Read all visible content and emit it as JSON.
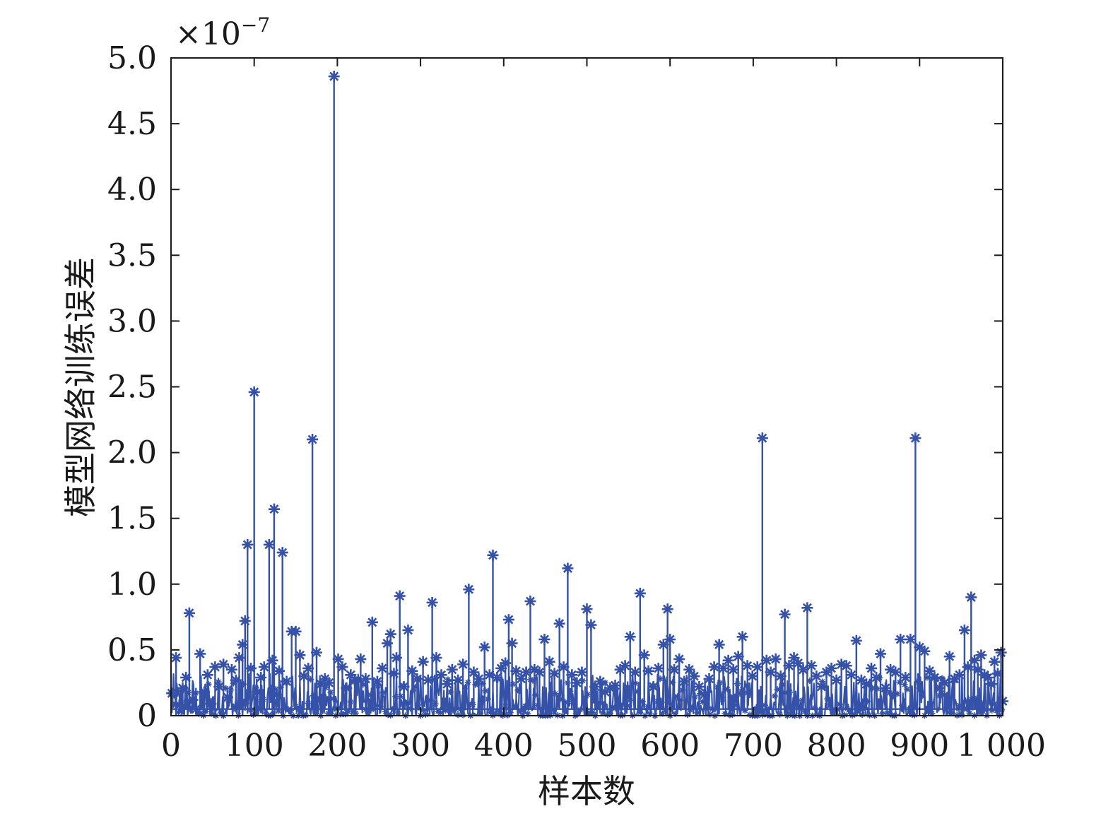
{
  "chart_data": {
    "type": "line",
    "title": "",
    "xlabel": "样本数",
    "ylabel": "模型网络训练误差",
    "y_multiplier": "×10",
    "y_multiplier_exponent": "−7",
    "xlim": [
      0,
      1000
    ],
    "ylim": [
      0,
      5.0
    ],
    "x_ticks": [
      0,
      100,
      200,
      300,
      400,
      500,
      600,
      700,
      800,
      900,
      1000
    ],
    "x_tick_labels": [
      "0",
      "100",
      "200",
      "300",
      "400",
      "500",
      "600",
      "700",
      "800",
      "900",
      "1 000"
    ],
    "y_ticks": [
      0,
      0.5,
      1.0,
      1.5,
      2.0,
      2.5,
      3.0,
      3.5,
      4.0,
      4.5,
      5.0
    ],
    "y_tick_labels": [
      "0",
      "0.5",
      "1.0",
      "1.5",
      "2.0",
      "2.5",
      "3.0",
      "3.5",
      "4.0",
      "4.5",
      "5.0"
    ],
    "grid": false,
    "marker": "asterisk",
    "line_color": "#3552a8",
    "series": [
      {
        "points": [
          [
            1,
            0.17
          ],
          [
            6,
            0.44
          ],
          [
            10,
            0.08
          ],
          [
            14,
            0.21
          ],
          [
            18,
            0.29
          ],
          [
            22,
            0.78
          ],
          [
            26,
            0.12
          ],
          [
            30,
            0.05
          ],
          [
            35,
            0.47
          ],
          [
            40,
            0.18
          ],
          [
            44,
            0.31
          ],
          [
            48,
            0.09
          ],
          [
            53,
            0.37
          ],
          [
            58,
            0.22
          ],
          [
            63,
            0.39
          ],
          [
            68,
            0.14
          ],
          [
            73,
            0.35
          ],
          [
            78,
            0.27
          ],
          [
            82,
            0.44
          ],
          [
            86,
            0.54
          ],
          [
            89,
            0.72
          ],
          [
            92,
            1.3
          ],
          [
            96,
            0.36
          ],
          [
            100,
            2.46
          ],
          [
            104,
            0.18
          ],
          [
            108,
            0.29
          ],
          [
            112,
            0.37
          ],
          [
            118,
            1.3
          ],
          [
            122,
            0.42
          ],
          [
            124,
            1.57
          ],
          [
            127,
            0.16
          ],
          [
            130,
            0.34
          ],
          [
            134,
            1.24
          ],
          [
            139,
            0.26
          ],
          [
            145,
            0.64
          ],
          [
            150,
            0.64
          ],
          [
            155,
            0.46
          ],
          [
            160,
            0.3
          ],
          [
            165,
            0.36
          ],
          [
            170,
            2.1
          ],
          [
            175,
            0.48
          ],
          [
            180,
            0.24
          ],
          [
            185,
            0.28
          ],
          [
            190,
            0.25
          ],
          [
            196,
            4.86
          ],
          [
            201,
            0.43
          ],
          [
            206,
            0.37
          ],
          [
            211,
            0.21
          ],
          [
            216,
            0.31
          ],
          [
            221,
            0.27
          ],
          [
            228,
            0.43
          ],
          [
            234,
            0.28
          ],
          [
            242,
            0.71
          ],
          [
            248,
            0.26
          ],
          [
            254,
            0.36
          ],
          [
            260,
            0.55
          ],
          [
            264,
            0.62
          ],
          [
            268,
            0.32
          ],
          [
            271,
            0.44
          ],
          [
            275,
            0.91
          ],
          [
            280,
            0.22
          ],
          [
            285,
            0.65
          ],
          [
            290,
            0.34
          ],
          [
            296,
            0.28
          ],
          [
            303,
            0.41
          ],
          [
            309,
            0.27
          ],
          [
            314,
            0.86
          ],
          [
            319,
            0.44
          ],
          [
            325,
            0.31
          ],
          [
            332,
            0.24
          ],
          [
            338,
            0.35
          ],
          [
            345,
            0.27
          ],
          [
            351,
            0.39
          ],
          [
            358,
            0.96
          ],
          [
            364,
            0.33
          ],
          [
            370,
            0.28
          ],
          [
            377,
            0.52
          ],
          [
            383,
            0.31
          ],
          [
            387,
            1.22
          ],
          [
            392,
            0.29
          ],
          [
            397,
            0.36
          ],
          [
            402,
            0.4
          ],
          [
            406,
            0.73
          ],
          [
            410,
            0.55
          ],
          [
            415,
            0.34
          ],
          [
            421,
            0.28
          ],
          [
            427,
            0.33
          ],
          [
            432,
            0.87
          ],
          [
            437,
            0.35
          ],
          [
            443,
            0.33
          ],
          [
            449,
            0.58
          ],
          [
            455,
            0.41
          ],
          [
            461,
            0.32
          ],
          [
            467,
            0.7
          ],
          [
            472,
            0.37
          ],
          [
            477,
            1.12
          ],
          [
            482,
            0.31
          ],
          [
            488,
            0.25
          ],
          [
            494,
            0.33
          ],
          [
            500,
            0.81
          ],
          [
            505,
            0.69
          ],
          [
            510,
            0.22
          ],
          [
            516,
            0.26
          ],
          [
            522,
            0.18
          ],
          [
            528,
            0.21
          ],
          [
            534,
            0.23
          ],
          [
            540,
            0.35
          ],
          [
            546,
            0.38
          ],
          [
            552,
            0.6
          ],
          [
            558,
            0.33
          ],
          [
            564,
            0.93
          ],
          [
            569,
            0.46
          ],
          [
            574,
            0.34
          ],
          [
            580,
            0.22
          ],
          [
            586,
            0.36
          ],
          [
            592,
            0.54
          ],
          [
            597,
            0.81
          ],
          [
            600,
            0.58
          ],
          [
            605,
            0.35
          ],
          [
            611,
            0.43
          ],
          [
            617,
            0.26
          ],
          [
            623,
            0.35
          ],
          [
            629,
            0.3
          ],
          [
            635,
            0.22
          ],
          [
            641,
            0.16
          ],
          [
            647,
            0.28
          ],
          [
            653,
            0.37
          ],
          [
            659,
            0.54
          ],
          [
            664,
            0.36
          ],
          [
            670,
            0.42
          ],
          [
            676,
            0.35
          ],
          [
            682,
            0.45
          ],
          [
            687,
            0.6
          ],
          [
            693,
            0.38
          ],
          [
            699,
            0.3
          ],
          [
            705,
            0.37
          ],
          [
            711,
            2.11
          ],
          [
            716,
            0.42
          ],
          [
            721,
            0.33
          ],
          [
            727,
            0.43
          ],
          [
            733,
            0.3
          ],
          [
            738,
            0.77
          ],
          [
            743,
            0.38
          ],
          [
            749,
            0.44
          ],
          [
            754,
            0.4
          ],
          [
            760,
            0.35
          ],
          [
            765,
            0.82
          ],
          [
            770,
            0.38
          ],
          [
            776,
            0.3
          ],
          [
            782,
            0.22
          ],
          [
            788,
            0.33
          ],
          [
            794,
            0.36
          ],
          [
            800,
            0.27
          ],
          [
            806,
            0.39
          ],
          [
            812,
            0.38
          ],
          [
            818,
            0.31
          ],
          [
            824,
            0.57
          ],
          [
            830,
            0.27
          ],
          [
            836,
            0.24
          ],
          [
            842,
            0.36
          ],
          [
            848,
            0.29
          ],
          [
            853,
            0.47
          ],
          [
            859,
            0.21
          ],
          [
            865,
            0.35
          ],
          [
            871,
            0.33
          ],
          [
            877,
            0.58
          ],
          [
            883,
            0.29
          ],
          [
            889,
            0.58
          ],
          [
            895,
            2.11
          ],
          [
            900,
            0.52
          ],
          [
            906,
            0.49
          ],
          [
            912,
            0.34
          ],
          [
            918,
            0.29
          ],
          [
            924,
            0.21
          ],
          [
            930,
            0.25
          ],
          [
            936,
            0.45
          ],
          [
            942,
            0.28
          ],
          [
            948,
            0.31
          ],
          [
            954,
            0.65
          ],
          [
            958,
            0.37
          ],
          [
            962,
            0.9
          ],
          [
            966,
            0.42
          ],
          [
            970,
            0.35
          ],
          [
            974,
            0.46
          ],
          [
            978,
            0.31
          ],
          [
            982,
            0.29
          ],
          [
            986,
            0.24
          ],
          [
            990,
            0.41
          ],
          [
            994,
            0.32
          ],
          [
            998,
            0.48
          ],
          [
            1000,
            0.11
          ]
        ]
      }
    ]
  }
}
